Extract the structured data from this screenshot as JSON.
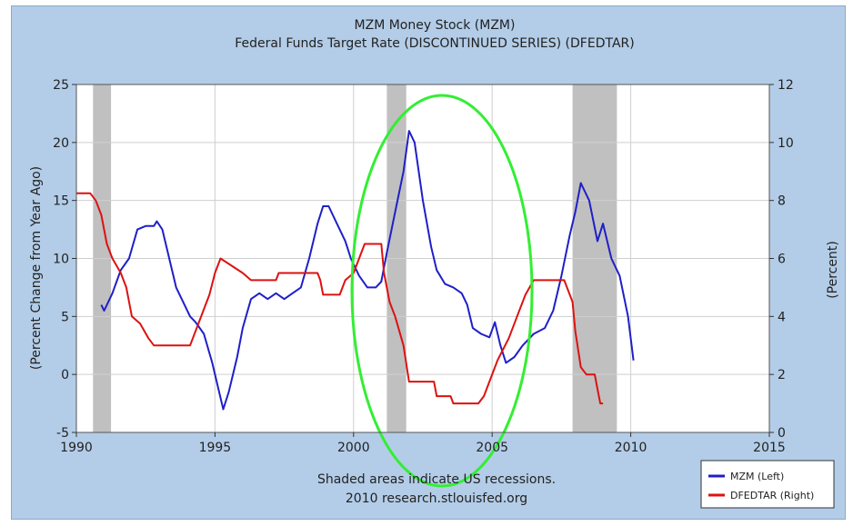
{
  "chart_data": {
    "type": "line",
    "title": "MZM Money Stock (MZM)",
    "subtitle": "Federal Funds Target Rate  (DISCONTINUED SERIES) (DFEDTAR)",
    "ylabel_left": "(Percent Change from Year Ago)",
    "ylabel_right": "(Percent)",
    "xlim": [
      1990,
      2015
    ],
    "ylim_left": [
      -5,
      25
    ],
    "ylim_right": [
      0,
      12
    ],
    "x_ticks": [
      "1990",
      "1995",
      "2000",
      "2005",
      "2010",
      "2015"
    ],
    "y_ticks_left": [
      "-5",
      "0",
      "5",
      "10",
      "15",
      "20",
      "25"
    ],
    "y_ticks_right": [
      "0",
      "2",
      "4",
      "6",
      "8",
      "10",
      "12"
    ],
    "grid": true,
    "legend_position": "bottom-right",
    "recessions": [
      [
        1990.6,
        1991.25
      ],
      [
        2001.2,
        2001.9
      ],
      [
        2007.9,
        2009.5
      ]
    ],
    "series": [
      {
        "name": "MZM (Left)",
        "axis": "left",
        "color": "#1f1fc8",
        "points": [
          [
            1990.9,
            6
          ],
          [
            1991.0,
            5.5
          ],
          [
            1991.3,
            7
          ],
          [
            1991.6,
            9
          ],
          [
            1991.9,
            10
          ],
          [
            1992.2,
            12.5
          ],
          [
            1992.5,
            12.8
          ],
          [
            1992.8,
            12.8
          ],
          [
            1992.9,
            13.2
          ],
          [
            1993.1,
            12.5
          ],
          [
            1993.3,
            10.5
          ],
          [
            1993.6,
            7.5
          ],
          [
            1993.9,
            6
          ],
          [
            1994.1,
            5
          ],
          [
            1994.3,
            4.5
          ],
          [
            1994.6,
            3.5
          ],
          [
            1994.9,
            1
          ],
          [
            1995.1,
            -1
          ],
          [
            1995.3,
            -3
          ],
          [
            1995.5,
            -1.5
          ],
          [
            1995.8,
            1.5
          ],
          [
            1996.0,
            4
          ],
          [
            1996.3,
            6.5
          ],
          [
            1996.6,
            7
          ],
          [
            1996.9,
            6.5
          ],
          [
            1997.2,
            7
          ],
          [
            1997.5,
            6.5
          ],
          [
            1997.8,
            7
          ],
          [
            1998.1,
            7.5
          ],
          [
            1998.4,
            10
          ],
          [
            1998.7,
            13
          ],
          [
            1998.9,
            14.5
          ],
          [
            1999.1,
            14.5
          ],
          [
            1999.4,
            13
          ],
          [
            1999.7,
            11.5
          ],
          [
            1999.9,
            10
          ],
          [
            2000.2,
            8.5
          ],
          [
            2000.5,
            7.5
          ],
          [
            2000.8,
            7.5
          ],
          [
            2001.0,
            8
          ],
          [
            2001.2,
            10.5
          ],
          [
            2001.5,
            14
          ],
          [
            2001.8,
            17.5
          ],
          [
            2002.0,
            21
          ],
          [
            2002.2,
            20
          ],
          [
            2002.5,
            15
          ],
          [
            2002.8,
            11
          ],
          [
            2003.0,
            9
          ],
          [
            2003.3,
            7.8
          ],
          [
            2003.6,
            7.5
          ],
          [
            2003.9,
            7
          ],
          [
            2004.1,
            6
          ],
          [
            2004.3,
            4
          ],
          [
            2004.6,
            3.5
          ],
          [
            2004.9,
            3.2
          ],
          [
            2005.1,
            4.5
          ],
          [
            2005.3,
            2.5
          ],
          [
            2005.5,
            1
          ],
          [
            2005.8,
            1.5
          ],
          [
            2006.1,
            2.5
          ],
          [
            2006.5,
            3.5
          ],
          [
            2006.9,
            4
          ],
          [
            2007.2,
            5.5
          ],
          [
            2007.5,
            8.5
          ],
          [
            2007.8,
            12
          ],
          [
            2008.0,
            14
          ],
          [
            2008.2,
            16.5
          ],
          [
            2008.5,
            15
          ],
          [
            2008.8,
            11.5
          ],
          [
            2009.0,
            13
          ],
          [
            2009.3,
            10
          ],
          [
            2009.6,
            8.5
          ],
          [
            2009.9,
            5
          ],
          [
            2010.1,
            1.2
          ]
        ]
      },
      {
        "name": "DFEDTAR (Right)",
        "axis": "right",
        "color": "#dd1111",
        "points": [
          [
            1990.0,
            8.25
          ],
          [
            1990.5,
            8.25
          ],
          [
            1990.7,
            8
          ],
          [
            1990.9,
            7.5
          ],
          [
            1991.1,
            6.5
          ],
          [
            1991.3,
            6
          ],
          [
            1991.6,
            5.5
          ],
          [
            1991.8,
            5
          ],
          [
            1992.0,
            4
          ],
          [
            1992.3,
            3.75
          ],
          [
            1992.6,
            3.25
          ],
          [
            1992.8,
            3
          ],
          [
            1994.1,
            3
          ],
          [
            1994.3,
            3.5
          ],
          [
            1994.6,
            4.25
          ],
          [
            1994.8,
            4.75
          ],
          [
            1995.0,
            5.5
          ],
          [
            1995.2,
            6
          ],
          [
            1995.6,
            5.75
          ],
          [
            1996.0,
            5.5
          ],
          [
            1996.3,
            5.25
          ],
          [
            1997.2,
            5.25
          ],
          [
            1997.3,
            5.5
          ],
          [
            1998.7,
            5.5
          ],
          [
            1998.8,
            5.25
          ],
          [
            1998.9,
            4.75
          ],
          [
            1999.5,
            4.75
          ],
          [
            1999.7,
            5.25
          ],
          [
            2000.0,
            5.5
          ],
          [
            2000.2,
            6
          ],
          [
            2000.4,
            6.5
          ],
          [
            2001.0,
            6.5
          ],
          [
            2001.1,
            5.5
          ],
          [
            2001.3,
            4.5
          ],
          [
            2001.5,
            4
          ],
          [
            2001.8,
            3
          ],
          [
            2002.0,
            1.75
          ],
          [
            2002.9,
            1.75
          ],
          [
            2003.0,
            1.25
          ],
          [
            2003.5,
            1.25
          ],
          [
            2003.6,
            1
          ],
          [
            2004.5,
            1
          ],
          [
            2004.7,
            1.25
          ],
          [
            2004.9,
            1.75
          ],
          [
            2005.2,
            2.5
          ],
          [
            2005.6,
            3.25
          ],
          [
            2005.9,
            4
          ],
          [
            2006.2,
            4.75
          ],
          [
            2006.5,
            5.25
          ],
          [
            2007.6,
            5.25
          ],
          [
            2007.7,
            5
          ],
          [
            2007.9,
            4.5
          ],
          [
            2008.0,
            3.5
          ],
          [
            2008.2,
            2.25
          ],
          [
            2008.4,
            2
          ],
          [
            2008.7,
            2
          ],
          [
            2008.8,
            1.5
          ],
          [
            2008.9,
            1
          ],
          [
            2009.0,
            1
          ]
        ]
      }
    ],
    "footnote_line1": "Shaded areas indicate US recessions.",
    "footnote_line2": "2010 research.stlouisfed.org"
  }
}
